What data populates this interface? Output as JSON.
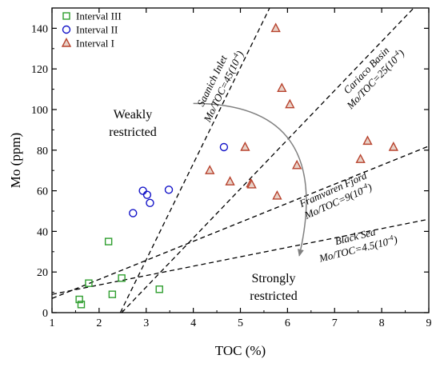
{
  "chart_data": {
    "type": "scatter",
    "xlabel": "TOC (%)",
    "ylabel": "Mo (ppm)",
    "xlim": [
      1,
      9
    ],
    "ylim": [
      0,
      150
    ],
    "x_ticks": [
      1,
      2,
      3,
      4,
      5,
      6,
      7,
      8,
      9
    ],
    "y_ticks": [
      0,
      20,
      40,
      60,
      80,
      100,
      120,
      140
    ],
    "legend_position": "top-left",
    "series": [
      {
        "name": "Interval III",
        "marker": "square",
        "color": "#2e9e2e",
        "points": [
          [
            1.58,
            6.5
          ],
          [
            1.62,
            4.0
          ],
          [
            1.78,
            14.5
          ],
          [
            2.2,
            35.0
          ],
          [
            2.28,
            9.0
          ],
          [
            2.48,
            17.0
          ],
          [
            3.28,
            11.5
          ]
        ]
      },
      {
        "name": "Interval II",
        "marker": "circle",
        "color": "#1414c8",
        "points": [
          [
            2.72,
            49.0
          ],
          [
            2.93,
            60.0
          ],
          [
            3.02,
            58.0
          ],
          [
            3.08,
            54.0
          ],
          [
            3.48,
            60.5
          ],
          [
            4.65,
            81.5
          ]
        ]
      },
      {
        "name": "Interval I",
        "marker": "triangle",
        "color": "#b8432e",
        "points": [
          [
            4.35,
            70.0
          ],
          [
            4.78,
            64.5
          ],
          [
            5.1,
            81.5
          ],
          [
            5.22,
            63.5
          ],
          [
            5.24,
            63.0
          ],
          [
            5.75,
            140.0
          ],
          [
            5.78,
            57.5
          ],
          [
            5.88,
            110.5
          ],
          [
            6.05,
            102.5
          ],
          [
            6.2,
            72.5
          ],
          [
            7.55,
            75.5
          ],
          [
            7.7,
            84.5
          ],
          [
            8.25,
            81.5
          ]
        ]
      }
    ],
    "reference_lines": [
      {
        "label_site": "Saanich Inlet",
        "label_ratio": "Mo/TOC=45(10",
        "exponent": "-4",
        "label_close": ")"
      },
      {
        "label_site": "Cariaco Basin",
        "label_ratio": "Mo/TOC=25(10",
        "exponent": "-4",
        "label_close": ")"
      },
      {
        "label_site": "Framvaren Fjord",
        "label_ratio": "Mo/TOC=9(10",
        "exponent": "-4",
        "label_close": ")"
      },
      {
        "label_site": "Black Sea",
        "label_ratio": "Mo/TOC=4.5(10",
        "exponent": "-4",
        "label_close": ")"
      }
    ],
    "region_labels": {
      "upper_line1": "Weakly",
      "upper_line2": "restricted",
      "lower_line1": "Strongly",
      "lower_line2": "restricted"
    },
    "colors": {
      "axis": "#000000",
      "reference_line": "#000000",
      "arrow": "#808080"
    }
  }
}
